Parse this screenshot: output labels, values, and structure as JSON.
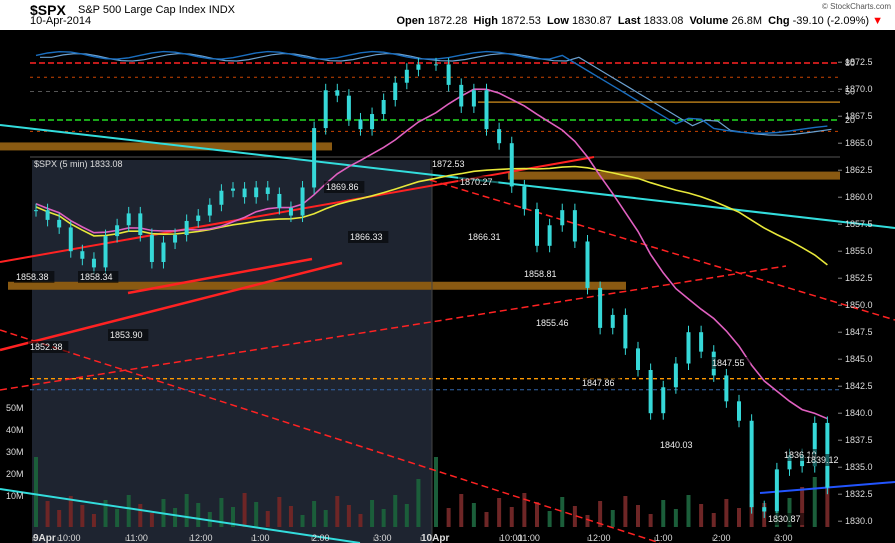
{
  "header": {
    "symbol": "$SPX",
    "name": "S&P 500 Large Cap Index",
    "exchange": "INDX",
    "date": "10-Apr-2014",
    "credit": "© StockCharts.com",
    "open_label": "Open",
    "open": "1872.28",
    "high_label": "High",
    "high": "1872.53",
    "low_label": "Low",
    "low": "1830.87",
    "last_label": "Last",
    "last": "1833.08",
    "volume_label": "Volume",
    "volume": "26.8M",
    "chg_label": "Chg",
    "chg": "-39.10 (-2.09%)",
    "chg_color": "#ff0000"
  },
  "chart_data": {
    "type": "candlestick",
    "legend": "$SPX (5 min) 1833.08",
    "x_tick_labels": [
      "9Apr",
      "10:00",
      "11:00",
      "12:00",
      "1:00",
      "2:00",
      "3:00",
      "10Apr",
      "10:00",
      "11:00",
      "12:00",
      "1:00",
      "2:00",
      "3:00"
    ],
    "price_axis": {
      "ticks": [
        "1872.5",
        "1870.0",
        "1867.5",
        "1865.0",
        "1862.5",
        "1860.0",
        "1857.5",
        "1855.0",
        "1852.5",
        "1850.0",
        "1847.5",
        "1845.0",
        "1842.5",
        "1840.0",
        "1837.5",
        "1835.0",
        "1832.5",
        "1830.0"
      ],
      "ylim": [
        1829,
        1874
      ]
    },
    "volume_axis": {
      "ticks": [
        "50M",
        "40M",
        "30M",
        "20M",
        "10M"
      ]
    },
    "indicator_axis": {
      "ticks": [
        "80",
        "50",
        "20"
      ],
      "ylim": [
        0,
        100
      ]
    },
    "close_path": [
      [
        1858.8,
        1857.9,
        1857.2,
        1855.0,
        1854.3,
        1853.5,
        1856.4,
        1857.4,
        1858.5,
        1856.5,
        1854.0,
        1855.8,
        1856.5,
        1857.8,
        1858.3,
        1859.3,
        1860.6,
        1860.8,
        1860.0,
        1860.9,
        1860.3,
        1859.0,
        1858.3,
        1860.9,
        1866.4,
        1869.9,
        1869.4,
        1867.2,
        1866.3,
        1867.7,
        1869.0,
        1870.6,
        1871.8,
        1872.3
      ],
      [
        1872.3,
        1870.4,
        1868.4,
        1869.9,
        1866.3,
        1865.0,
        1861.0,
        1858.9,
        1855.5,
        1857.4,
        1858.8,
        1855.9,
        1851.6,
        1847.9,
        1849.1,
        1846.0,
        1844.0,
        1840.0,
        1842.4,
        1844.6,
        1847.5,
        1845.7,
        1843.5,
        1841.1,
        1839.3,
        1831.3,
        1830.9,
        1834.8,
        1836.1,
        1835.1,
        1839.1,
        1833.1
      ]
    ],
    "annotations": [
      {
        "label": "1858.38",
        "price": 1858.38
      },
      {
        "label": "1858.34",
        "price": 1858.34
      },
      {
        "label": "1852.38",
        "price": 1852.38
      },
      {
        "label": "1853.90",
        "price": 1853.9
      },
      {
        "label": "1869.86",
        "price": 1869.86
      },
      {
        "label": "1866.33",
        "price": 1866.33
      },
      {
        "label": "1872.53",
        "price": 1872.53
      },
      {
        "label": "1870.27",
        "price": 1870.27
      },
      {
        "label": "1866.31",
        "price": 1866.31
      },
      {
        "label": "1858.81",
        "price": 1858.81
      },
      {
        "label": "1855.46",
        "price": 1855.46
      },
      {
        "label": "1847.86",
        "price": 1847.86
      },
      {
        "label": "1847.55",
        "price": 1847.55
      },
      {
        "label": "1840.03",
        "price": 1840.03
      },
      {
        "label": "1836.10",
        "price": 1836.1
      },
      {
        "label": "1839.12",
        "price": 1839.12
      },
      {
        "label": "1830.87",
        "price": 1830.87
      }
    ],
    "support_bands": [
      1864.7,
      1862.0,
      1851.8
    ],
    "reference_levels": {
      "thin_gold": 1868.8,
      "orange_dashed": 1843.2,
      "blue_dashed": 1843.0
    },
    "colors": {
      "background": "#000000",
      "prior_day_shade": "#1e2430",
      "candles": "#36d8d8",
      "volume_up": "#1b5e3a",
      "volume_down": "#6e2626",
      "ma_short": "#e8e83a",
      "ma_long": "#e060c0",
      "trend_red": "#ff2222",
      "trend_cyan": "#33dddd",
      "band": "#8a5a12",
      "indicator": "#1a6ebf",
      "indicator_signal": "#6aa0d0",
      "level_80": "#ff2222",
      "level_20": "#22dd22"
    }
  }
}
